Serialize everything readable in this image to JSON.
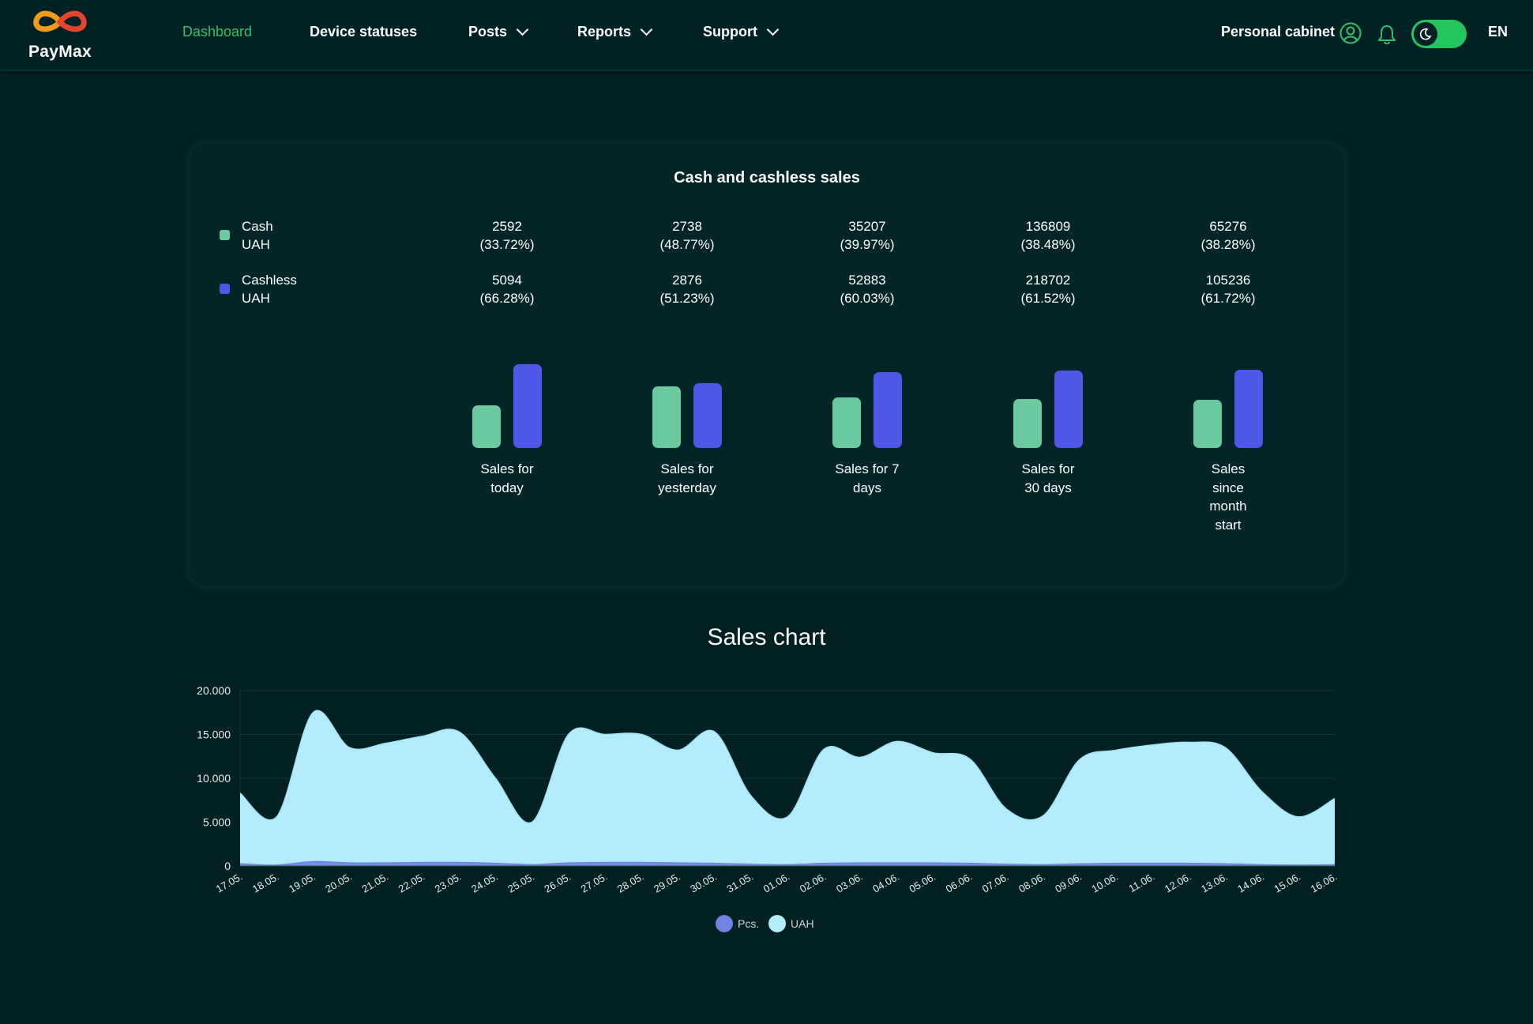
{
  "header": {
    "logo_text": "PayMax",
    "nav": [
      {
        "label": "Dashboard",
        "active": true,
        "dropdown": false
      },
      {
        "label": "Device statuses",
        "active": false,
        "dropdown": false
      },
      {
        "label": "Posts",
        "active": false,
        "dropdown": true
      },
      {
        "label": "Reports",
        "active": false,
        "dropdown": true
      },
      {
        "label": "Support",
        "active": false,
        "dropdown": true
      }
    ],
    "cabinet_label": "Personal cabinet",
    "lang": "EN",
    "accent_color": "#2ec26a"
  },
  "summary": {
    "title": "Cash and cashless sales",
    "legend": [
      {
        "label1": "Cash",
        "label2": "UAH",
        "color": "#6bc9a0"
      },
      {
        "label1": "Cashless",
        "label2": "UAH",
        "color": "#5057e6"
      }
    ],
    "periods": [
      {
        "label_lines": [
          "Sales for",
          "today"
        ],
        "cash": "2592",
        "cash_pct": "(33.72%)",
        "cashless": "5094",
        "cashless_pct": "(66.28%)"
      },
      {
        "label_lines": [
          "Sales for",
          "yesterday"
        ],
        "cash": "2738",
        "cash_pct": "(48.77%)",
        "cashless": "2876",
        "cashless_pct": "(51.23%)"
      },
      {
        "label_lines": [
          "Sales for 7",
          "days"
        ],
        "cash": "35207",
        "cash_pct": "(39.97%)",
        "cashless": "52883",
        "cashless_pct": "(60.03%)"
      },
      {
        "label_lines": [
          "Sales for",
          "30 days"
        ],
        "cash": "136809",
        "cash_pct": "(38.48%)",
        "cashless": "218702",
        "cashless_pct": "(61.52%)"
      },
      {
        "label_lines": [
          "Sales",
          "since",
          "month",
          "start"
        ],
        "cash": "65276",
        "cash_pct": "(38.28%)",
        "cashless": "105236",
        "cashless_pct": "(61.72%)"
      }
    ]
  },
  "sales_chart": {
    "title": "Sales chart",
    "legend": [
      {
        "label": "Pcs.",
        "color": "#6f83e3"
      },
      {
        "label": "UAH",
        "color": "#b3ecfd"
      }
    ]
  },
  "chart_data": [
    {
      "type": "bar",
      "categories": [
        "Sales for today",
        "Sales for yesterday",
        "Sales for 7 days",
        "Sales for 30 days",
        "Sales since month start"
      ],
      "series": [
        {
          "name": "Cash UAH",
          "values": [
            33.72,
            48.77,
            39.97,
            38.48,
            38.28
          ]
        },
        {
          "name": "Cashless UAH",
          "values": [
            66.28,
            51.23,
            60.03,
            61.52,
            61.72
          ]
        }
      ]
    },
    {
      "type": "area",
      "title": "Sales chart",
      "x": [
        "17.05.",
        "18.05.",
        "19.05.",
        "20.05.",
        "21.05.",
        "22.05.",
        "23.05.",
        "24.05.",
        "25.05.",
        "26.05.",
        "27.05.",
        "28.05.",
        "29.05.",
        "30.05.",
        "31.05.",
        "01.06.",
        "02.06.",
        "03.06.",
        "04.06.",
        "05.06.",
        "06.06.",
        "07.06.",
        "08.06.",
        "09.06.",
        "10.06.",
        "11.06.",
        "12.06.",
        "13.06.",
        "14.06.",
        "15.06.",
        "16.06."
      ],
      "yticks": [
        "0",
        "5.000",
        "10.000",
        "15.000",
        "20.000"
      ],
      "ylim": [
        0,
        20000
      ],
      "grid": true,
      "legend_position": "bottom",
      "series": [
        {
          "name": "Pcs.",
          "values": [
            250,
            100,
            500,
            350,
            350,
            400,
            400,
            300,
            150,
            350,
            400,
            400,
            350,
            300,
            200,
            150,
            300,
            350,
            350,
            350,
            300,
            200,
            150,
            250,
            300,
            300,
            300,
            250,
            150,
            100,
            150
          ]
        },
        {
          "name": "UAH",
          "values": [
            8300,
            5600,
            17500,
            13500,
            14000,
            14800,
            15300,
            10000,
            5000,
            15000,
            15000,
            15000,
            13200,
            15300,
            8000,
            5600,
            13300,
            12400,
            14200,
            12900,
            12200,
            6500,
            5700,
            12100,
            13200,
            13800,
            14100,
            13500,
            8500,
            5600,
            7700
          ]
        }
      ]
    }
  ]
}
